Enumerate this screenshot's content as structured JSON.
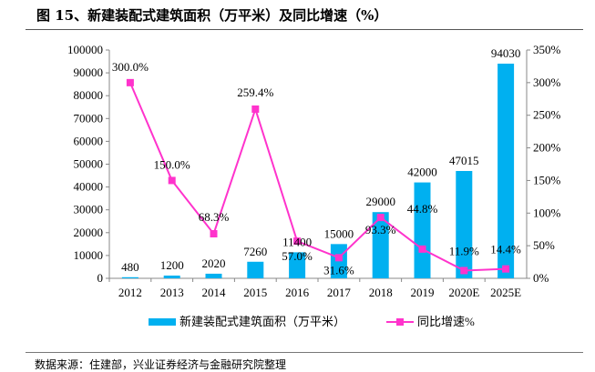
{
  "title": "图 15、新建装配式建筑面积（万平米）及同比增速（%）",
  "source": "数据来源：住建部，兴业证券经济与金融研究院整理",
  "chart_data": {
    "type": "bar+line",
    "categories": [
      "2012",
      "2013",
      "2014",
      "2015",
      "2016",
      "2017",
      "2018",
      "2019",
      "2020E",
      "2025E"
    ],
    "series": [
      {
        "name": "新建装配式建筑面积（万平米）",
        "type": "bar",
        "axis": "left",
        "color": "#00B0F0",
        "values": [
          480,
          1200,
          2020,
          7260,
          11400,
          15000,
          29000,
          42000,
          47015,
          94030
        ],
        "labels": [
          "480",
          "1200",
          "2020",
          "7260",
          "11400",
          "15000",
          "29000",
          "42000",
          "47015",
          "94030"
        ]
      },
      {
        "name": "同比增速%",
        "type": "line",
        "axis": "right",
        "color": "#FF33CC",
        "values": [
          300.0,
          150.0,
          68.3,
          259.4,
          57.0,
          31.6,
          93.3,
          44.8,
          11.9,
          14.4
        ],
        "labels": [
          "300.0%",
          "150.0%",
          "68.3%",
          "259.4%",
          "57.0%",
          "31.6%",
          "93.3%",
          "44.8%",
          "11.9%",
          "14.4%"
        ]
      }
    ],
    "y_left": {
      "range": [
        0,
        100000
      ],
      "ticks": [
        "0",
        "10000",
        "20000",
        "30000",
        "40000",
        "50000",
        "60000",
        "70000",
        "80000",
        "90000",
        "100000"
      ]
    },
    "y_right": {
      "range": [
        0,
        350
      ],
      "ticks": [
        "0%",
        "50%",
        "100%",
        "150%",
        "200%",
        "250%",
        "300%",
        "350%"
      ]
    },
    "legend": "bottom"
  }
}
